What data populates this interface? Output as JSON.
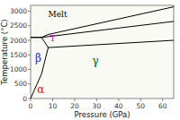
{
  "chart_data": {
    "type": "line",
    "xlabel": "Pressure (GPa)",
    "ylabel": "Temperature (°C)",
    "xlim": [
      0,
      65
    ],
    "ylim": [
      0,
      3200
    ],
    "xticks": [
      0,
      10,
      20,
      30,
      40,
      50,
      60
    ],
    "yticks": [
      0,
      500,
      1000,
      1500,
      2000,
      2500,
      3000
    ],
    "series": [
      {
        "x": [
          0,
          5
        ],
        "values": [
          2100,
          2100
        ],
        "color": "black"
      },
      {
        "x": [
          5,
          8
        ],
        "values": [
          2100,
          1750
        ],
        "color": "black"
      },
      {
        "x": [
          8,
          5,
          0
        ],
        "values": [
          1750,
          850,
          0
        ],
        "color": "black"
      },
      {
        "x": [
          5,
          8
        ],
        "values": [
          2100,
          2200
        ],
        "color": "black"
      },
      {
        "x": [
          8,
          65
        ],
        "values": [
          2200,
          3150
        ],
        "color": "black"
      },
      {
        "x": [
          0,
          5
        ],
        "values": [
          2100,
          2100
        ],
        "color": "black"
      },
      {
        "x": [
          8,
          65
        ],
        "values": [
          1750,
          2000
        ],
        "color": "black"
      },
      {
        "x": [
          5,
          65
        ],
        "values": [
          2100,
          2650
        ],
        "color": "black"
      }
    ],
    "annotations": [
      {
        "text": "Melt",
        "x": 8,
        "y": 2900,
        "color": "black"
      },
      {
        "text": "β",
        "x": 2,
        "y": 1400,
        "color": "#2222cc"
      },
      {
        "text": "α",
        "x": 3,
        "y": 320,
        "color": "#cc2222"
      },
      {
        "text": "γ",
        "x": 28,
        "y": 1300,
        "color": "#006600"
      },
      {
        "text": "T",
        "x": 8.8,
        "y": 2050,
        "color": "#cc00cc"
      }
    ]
  }
}
